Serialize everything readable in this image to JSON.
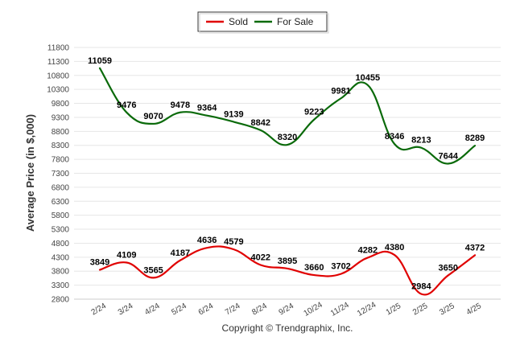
{
  "chart_data": {
    "type": "line",
    "categories": [
      "2/24",
      "3/24",
      "4/24",
      "5/24",
      "6/24",
      "7/24",
      "8/24",
      "9/24",
      "10/24",
      "11/24",
      "12/24",
      "1/25",
      "2/25",
      "3/25",
      "4/25"
    ],
    "series": [
      {
        "name": "Sold",
        "color": "#e00000",
        "values": [
          3849,
          4109,
          3565,
          4187,
          4636,
          4579,
          4022,
          3895,
          3660,
          3702,
          4282,
          4380,
          2984,
          3650,
          4372
        ]
      },
      {
        "name": "For Sale",
        "color": "#0a6a0a",
        "values": [
          11059,
          9476,
          9070,
          9478,
          9364,
          9139,
          8842,
          8320,
          9223,
          9981,
          10455,
          8346,
          8213,
          7644,
          8289
        ]
      }
    ],
    "ylabel": "Average Price (in $,000)",
    "xlabel": "",
    "ylim": [
      2800,
      11800
    ],
    "ytick_step": 500,
    "grid": true,
    "legend": "top-center",
    "footer": "Copyright © Trendgraphix, Inc."
  }
}
